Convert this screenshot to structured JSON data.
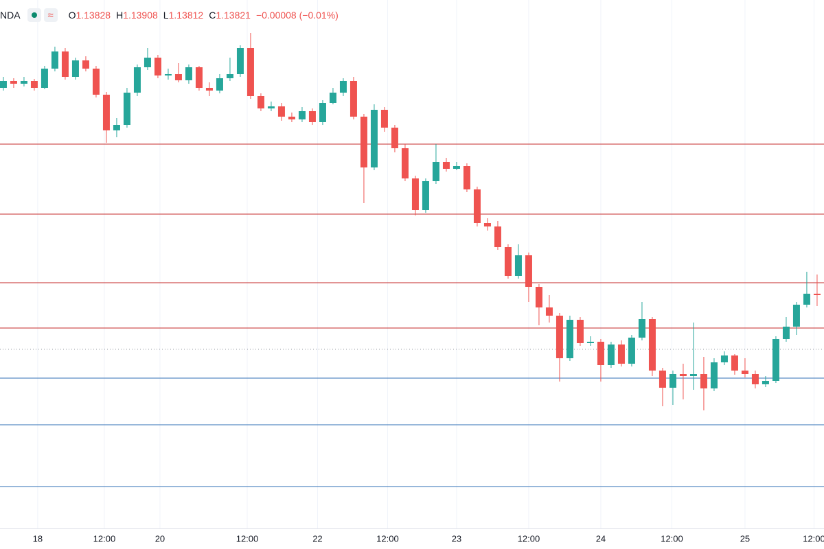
{
  "chart_data": {
    "type": "candlestick",
    "symbol": "NDA",
    "ohlc": [
      {
        "label": "O",
        "value": "1.13828"
      },
      {
        "label": "H",
        "value": "1.13908"
      },
      {
        "label": "L",
        "value": "1.13812"
      },
      {
        "label": "C",
        "value": "1.13821"
      }
    ],
    "change": "−0.00008 (−0.01%)",
    "up_color": "#26a69a",
    "down_color": "#ef5350",
    "grid": true,
    "x": [
      0,
      1,
      2,
      3,
      4,
      5,
      6,
      7,
      8,
      9,
      10,
      11,
      12,
      13,
      14,
      15,
      16,
      17,
      18,
      19,
      20,
      21,
      22,
      23,
      24,
      25,
      26,
      27,
      28,
      29,
      30,
      31,
      32,
      33,
      34,
      35,
      36,
      37,
      38,
      39,
      40,
      41,
      42,
      43,
      44,
      45,
      46,
      47,
      48,
      49,
      50,
      51,
      52,
      53,
      54,
      55,
      56,
      57,
      58,
      59,
      60,
      61,
      62,
      63,
      64,
      65,
      66,
      67,
      68,
      69,
      70,
      71,
      72,
      73,
      74,
      75,
      76,
      77,
      78,
      79
    ],
    "open": [
      1.1536,
      1.1541,
      1.1539,
      1.1541,
      1.1536,
      1.155,
      1.15625,
      1.1544,
      1.1556,
      1.155,
      1.1531,
      1.1505,
      1.1509,
      1.15325,
      1.1551,
      1.1558,
      1.1545,
      1.1546,
      1.15415,
      1.1551,
      1.1536,
      1.1534,
      1.1543,
      1.1546,
      1.1565,
      1.153,
      1.1521,
      1.15225,
      1.1515,
      1.1513,
      1.1519,
      1.1511,
      1.1525,
      1.15325,
      1.1541,
      1.1515,
      1.1478,
      1.152,
      1.1507,
      1.1492,
      1.147,
      1.1447,
      1.1468,
      1.1482,
      1.1477,
      1.1479,
      1.1462,
      1.14375,
      1.1435,
      1.142,
      1.1399,
      1.1414,
      1.1391,
      1.1376,
      1.137,
      1.1339,
      1.1367,
      1.135,
      1.1351,
      1.1334,
      1.1349,
      1.1335,
      1.1354,
      1.13675,
      1.133,
      1.13175,
      1.13275,
      1.1326,
      1.13275,
      1.1317,
      1.1336,
      1.1341,
      1.133,
      1.13275,
      1.132,
      1.13225,
      1.1353,
      1.1362,
      1.1378,
      1.1386
    ],
    "high": [
      1.1544,
      1.1543,
      1.1544,
      1.15425,
      1.1552,
      1.1566,
      1.1565,
      1.1558,
      1.1559,
      1.1552,
      1.1533,
      1.1514,
      1.1536,
      1.1553,
      1.1565,
      1.156,
      1.155,
      1.1554,
      1.1553,
      1.1552,
      1.154,
      1.1546,
      1.1558,
      1.1567,
      1.1576,
      1.1532,
      1.1526,
      1.1525,
      1.1518,
      1.1522,
      1.1521,
      1.1527,
      1.1536,
      1.1543,
      1.1544,
      1.1517,
      1.1524,
      1.1522,
      1.1509,
      1.1495,
      1.1472,
      1.147,
      1.1495,
      1.1485,
      1.1482,
      1.1481,
      1.1464,
      1.1441,
      1.1439,
      1.1422,
      1.1422,
      1.1416,
      1.1393,
      1.1385,
      1.1372,
      1.137,
      1.1369,
      1.1355,
      1.1353,
      1.1351,
      1.1352,
      1.1356,
      1.138,
      1.1369,
      1.1332,
      1.133,
      1.1335,
      1.1365,
      1.134,
      1.1339,
      1.1344,
      1.1342,
      1.1339,
      1.133,
      1.1326,
      1.1355,
      1.1369,
      1.138,
      1.1402,
      1.14
    ],
    "low": [
      1.1534,
      1.1536,
      1.1537,
      1.1534,
      1.1535,
      1.1548,
      1.1542,
      1.1542,
      1.1548,
      1.1529,
      1.1496,
      1.15,
      1.1507,
      1.153,
      1.1549,
      1.1543,
      1.1542,
      1.154,
      1.1539,
      1.1534,
      1.153,
      1.1532,
      1.1541,
      1.1544,
      1.1528,
      1.1519,
      1.1519,
      1.1512,
      1.1511,
      1.1511,
      1.1509,
      1.1509,
      1.1524,
      1.153,
      1.1513,
      1.1452,
      1.1476,
      1.1504,
      1.1489,
      1.1468,
      1.1443,
      1.1445,
      1.1466,
      1.1475,
      1.1476,
      1.146,
      1.1435,
      1.1432,
      1.1418,
      1.1397,
      1.1397,
      1.138,
      1.1363,
      1.1365,
      1.1322,
      1.1337,
      1.1348,
      1.1348,
      1.1322,
      1.1332,
      1.1333,
      1.1333,
      1.1352,
      1.1326,
      1.1304,
      1.1305,
      1.1309,
      1.1316,
      1.1301,
      1.1315,
      1.1334,
      1.1327,
      1.1325,
      1.1317,
      1.1318,
      1.1321,
      1.1351,
      1.1356,
      1.1376,
      1.1377
    ],
    "close": [
      1.1541,
      1.1539,
      1.1541,
      1.1536,
      1.155,
      1.15625,
      1.1544,
      1.1556,
      1.155,
      1.1531,
      1.1505,
      1.1509,
      1.15325,
      1.1551,
      1.1558,
      1.1545,
      1.1546,
      1.15415,
      1.1551,
      1.1536,
      1.1534,
      1.1543,
      1.1546,
      1.1565,
      1.153,
      1.1521,
      1.15225,
      1.1515,
      1.1513,
      1.1519,
      1.1511,
      1.1525,
      1.15325,
      1.1541,
      1.1515,
      1.1478,
      1.152,
      1.1507,
      1.1492,
      1.147,
      1.1447,
      1.1468,
      1.1482,
      1.1477,
      1.1479,
      1.1462,
      1.14375,
      1.1435,
      1.142,
      1.1399,
      1.1414,
      1.1391,
      1.1376,
      1.137,
      1.1339,
      1.1367,
      1.135,
      1.1351,
      1.1334,
      1.1349,
      1.1335,
      1.1354,
      1.13675,
      1.133,
      1.13175,
      1.13275,
      1.1326,
      1.13275,
      1.1317,
      1.1336,
      1.1341,
      1.133,
      1.13275,
      1.132,
      1.13225,
      1.1353,
      1.1362,
      1.1378,
      1.1386,
      1.1385
    ],
    "xlim": [
      -0.33,
      79.67
    ],
    "ylim": [
      1.1215,
      1.16
    ],
    "xticks": [
      {
        "value": 3.33,
        "label": "18"
      },
      {
        "value": 9.8,
        "label": "12:00"
      },
      {
        "value": 15.2,
        "label": "20"
      },
      {
        "value": 23.67,
        "label": "12:00"
      },
      {
        "value": 30.5,
        "label": "22"
      },
      {
        "value": 37.3,
        "label": "12:00"
      },
      {
        "value": 44,
        "label": "23"
      },
      {
        "value": 51,
        "label": "12:00"
      },
      {
        "value": 58,
        "label": "24"
      },
      {
        "value": 64.9,
        "label": "12:00"
      },
      {
        "value": 72,
        "label": "25"
      },
      {
        "value": 78.7,
        "label": "12:00"
      }
    ],
    "levels": [
      {
        "value": 1.1495,
        "color": "#c62828",
        "style": "solid"
      },
      {
        "value": 1.1444,
        "color": "#c62828",
        "style": "solid"
      },
      {
        "value": 1.1394,
        "color": "#c62828",
        "style": "solid"
      },
      {
        "value": 1.1361,
        "color": "#c62828",
        "style": "solid"
      },
      {
        "value": 1.13455,
        "color": "#9598a1",
        "style": "dotted"
      },
      {
        "value": 1.13245,
        "color": "#2f6fb5",
        "style": "solid"
      },
      {
        "value": 1.12905,
        "color": "#2f6fb5",
        "style": "solid"
      },
      {
        "value": 1.12455,
        "color": "#2f6fb5",
        "style": "solid"
      }
    ]
  }
}
